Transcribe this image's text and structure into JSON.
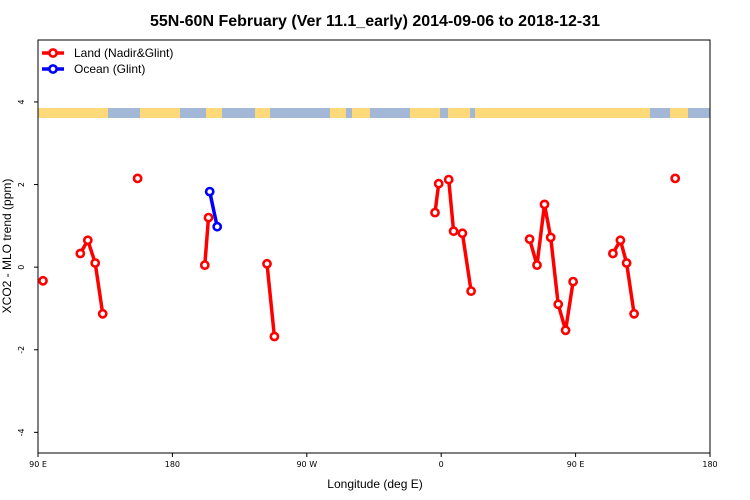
{
  "chart_data": {
    "type": "line",
    "title": "55N-60N February (Ver 11.1_early)   2014-09-06 to 2018-12-31",
    "xlabel": "Longitude (deg E)",
    "ylabel": "XCO2 - MLO trend (ppm)",
    "xlim": [
      -90,
      180
    ],
    "ylim": [
      -4.5,
      5.5
    ],
    "x_ticks": [
      {
        "value": -90,
        "label": "90 E"
      },
      {
        "value": -36,
        "label": "180"
      },
      {
        "value": 18,
        "label": "90 W"
      },
      {
        "value": 72,
        "label": "0"
      },
      {
        "value": 126,
        "label": "90 E"
      },
      {
        "value": 180,
        "label": "180"
      }
    ],
    "y_ticks": [
      {
        "value": -4,
        "label": "-4"
      },
      {
        "value": -2,
        "label": "-2"
      },
      {
        "value": 0,
        "label": "0"
      },
      {
        "value": 2,
        "label": "2"
      },
      {
        "value": 4,
        "label": "4"
      }
    ],
    "legend_position": "top-left",
    "grid": false,
    "series": [
      {
        "name": "Land (Nadir&Glint)",
        "color": "#ff0000",
        "segments": [
          [
            [
              -88,
              -0.33
            ]
          ],
          [
            [
              -73,
              0.33
            ],
            [
              -70,
              0.65
            ],
            [
              -67,
              0.1
            ],
            [
              -64,
              -1.13
            ]
          ],
          [
            [
              -50,
              2.15
            ]
          ],
          [
            [
              -23,
              0.05
            ],
            [
              -21.5,
              1.2
            ]
          ],
          [
            [
              2,
              0.08
            ],
            [
              5,
              -1.68
            ]
          ],
          [
            [
              69.5,
              1.32
            ],
            [
              71,
              2.02
            ]
          ],
          [
            [
              75,
              2.12
            ],
            [
              77,
              0.87
            ],
            [
              80.5,
              0.82
            ],
            [
              84,
              -0.58
            ]
          ],
          [
            [
              107.5,
              0.68
            ],
            [
              110.5,
              0.05
            ],
            [
              113.5,
              1.52
            ],
            [
              116,
              0.72
            ],
            [
              119,
              -0.9
            ],
            [
              122,
              -1.53
            ],
            [
              125,
              -0.35
            ]
          ],
          [
            [
              141,
              0.33
            ],
            [
              144,
              0.65
            ],
            [
              146.5,
              0.1
            ],
            [
              149.5,
              -1.13
            ]
          ],
          [
            [
              166,
              2.15
            ]
          ]
        ]
      },
      {
        "name": "Ocean (Glint)",
        "color": "#0000ff",
        "segments": [
          [
            [
              -21,
              1.83
            ],
            [
              -18,
              0.98
            ]
          ]
        ]
      }
    ],
    "map_strip": {
      "ocean_color": "#a3b8d6",
      "land_color": "#fdd97a"
    }
  }
}
